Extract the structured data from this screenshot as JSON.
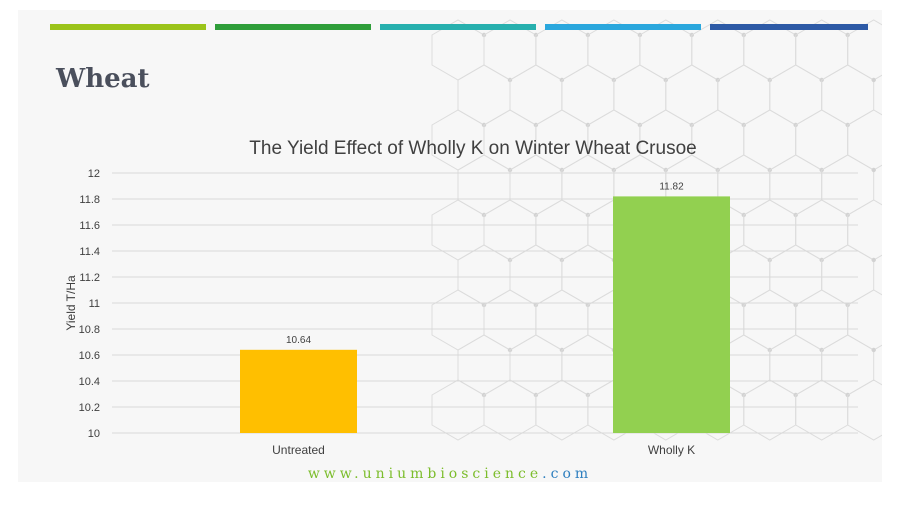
{
  "slide": {
    "title": "Wheat",
    "footer_prefix": "www.",
    "footer_domain": "uniumbioscience",
    "footer_suffix": ".com",
    "accent_colors": [
      "#9bc41a",
      "#2f9e3a",
      "#27b0ae",
      "#2aa7dd",
      "#2d5aa6"
    ]
  },
  "chart_data": {
    "type": "bar",
    "title": "The Yield Effect of Wholly K on Winter Wheat Crusoe",
    "ylabel": "Yield T/Ha",
    "xlabel": "",
    "categories": [
      "Untreated",
      "Wholly K"
    ],
    "values": [
      10.64,
      11.82
    ],
    "data_labels": [
      "10.64",
      "11.82"
    ],
    "bar_colors": [
      "#ffbf00",
      "#92d050"
    ],
    "ylim": [
      10,
      12
    ],
    "yticks": [
      "10",
      "10.2",
      "10.4",
      "10.6",
      "10.8",
      "11",
      "11.2",
      "11.4",
      "11.6",
      "11.8",
      "12"
    ],
    "grid": true,
    "legend": "none"
  }
}
